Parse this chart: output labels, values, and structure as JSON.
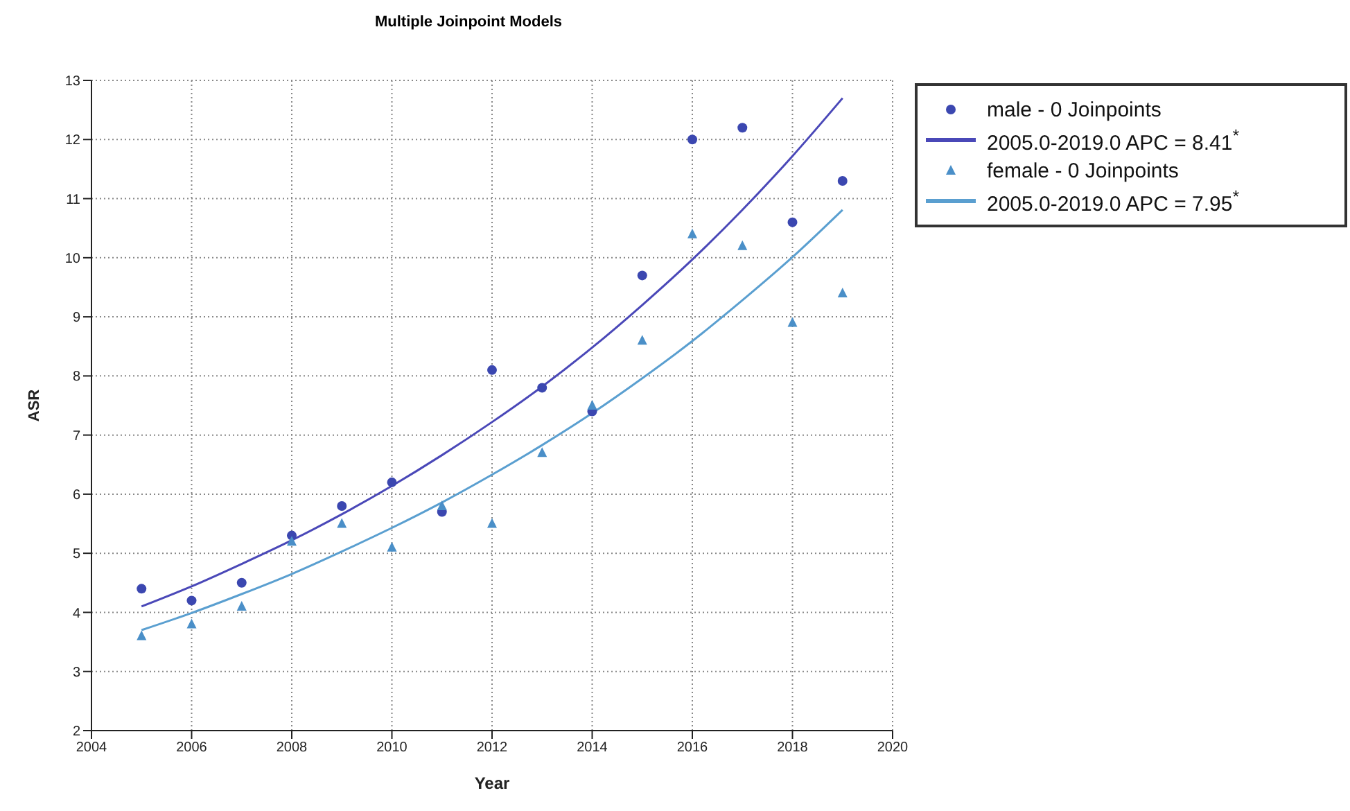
{
  "chart_data": {
    "type": "scatter",
    "title": "Multiple Joinpoint Models",
    "xlabel": "Year",
    "ylabel": "ASR",
    "xlim": [
      2004,
      2020
    ],
    "xticks": [
      2004,
      2006,
      2008,
      2010,
      2012,
      2014,
      2016,
      2018,
      2020
    ],
    "ylim": [
      2,
      13
    ],
    "yticks": [
      2,
      3,
      4,
      5,
      6,
      7,
      8,
      9,
      10,
      11,
      12,
      13
    ],
    "grid": true,
    "legend": "top right",
    "series": [
      {
        "name": "male - 0 Joinpoints",
        "type": "scatter",
        "marker": "circle",
        "color": "#3b47b0",
        "x": [
          2005,
          2006,
          2007,
          2008,
          2009,
          2010,
          2011,
          2012,
          2013,
          2014,
          2015,
          2016,
          2017,
          2018,
          2019
        ],
        "values": [
          4.4,
          4.2,
          4.5,
          5.3,
          5.8,
          6.2,
          5.7,
          8.1,
          7.8,
          7.4,
          9.7,
          12.0,
          12.2,
          10.6,
          11.3
        ]
      },
      {
        "name": "2005.0-2019.0 APC  = 8.41$^{*}$",
        "type": "line",
        "line_style": "solid",
        "marker": "none",
        "color": "#4a48b8",
        "x": [
          2005,
          2006,
          2007,
          2008,
          2009,
          2010,
          2011,
          2012,
          2013,
          2014,
          2015,
          2016,
          2017,
          2018,
          2019
        ],
        "values": [
          4.1,
          4.44,
          4.82,
          5.22,
          5.66,
          6.14,
          6.66,
          7.22,
          7.82,
          8.48,
          9.2,
          9.97,
          10.81,
          11.72,
          12.7
        ]
      },
      {
        "name": "female - 0 Joinpoints",
        "type": "scatter",
        "marker": "triangle",
        "color": "#4a8fc8",
        "x": [
          2005,
          2006,
          2007,
          2008,
          2009,
          2010,
          2011,
          2012,
          2013,
          2014,
          2015,
          2016,
          2017,
          2018,
          2019
        ],
        "values": [
          3.6,
          3.8,
          4.1,
          5.2,
          5.5,
          5.1,
          5.8,
          5.5,
          6.7,
          7.5,
          8.6,
          10.4,
          10.2,
          8.9,
          9.4
        ]
      },
      {
        "name": "2005.0-2019.0 APC  = 7.95$^{*}$",
        "type": "line",
        "line_style": "solid",
        "marker": "none",
        "color": "#5a9fd0",
        "x": [
          2005,
          2006,
          2007,
          2008,
          2009,
          2010,
          2011,
          2012,
          2013,
          2014,
          2015,
          2016,
          2017,
          2018,
          2019
        ],
        "values": [
          3.7,
          3.99,
          4.31,
          4.65,
          5.03,
          5.43,
          5.86,
          6.33,
          6.83,
          7.37,
          7.96,
          8.59,
          9.28,
          10.01,
          10.81
        ]
      }
    ]
  }
}
